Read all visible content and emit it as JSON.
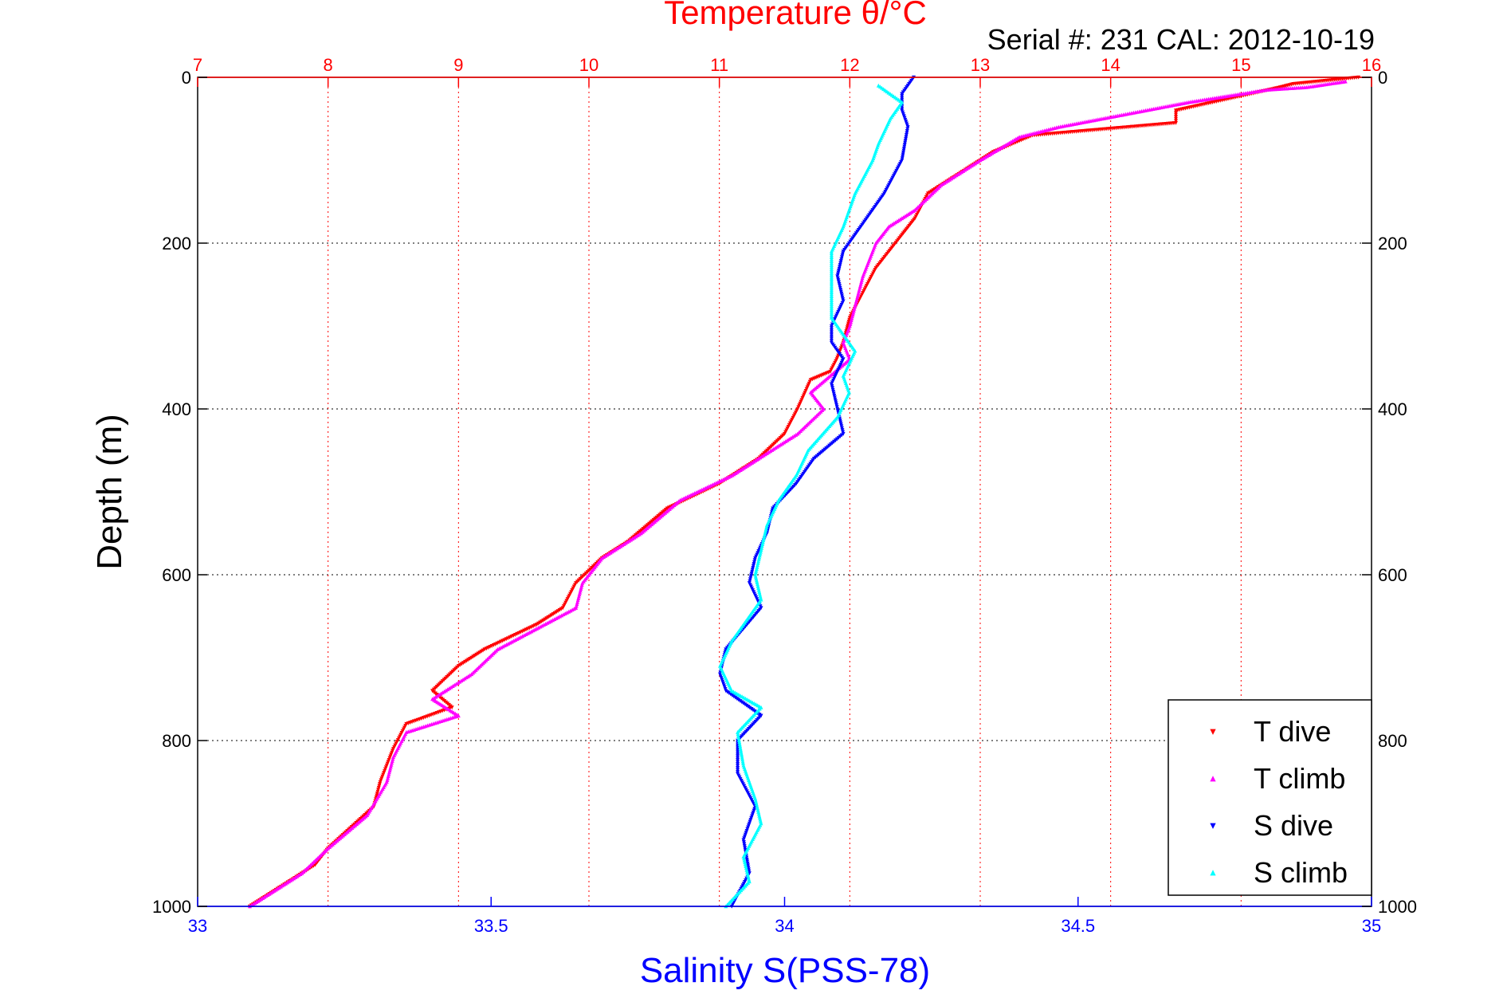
{
  "chart_data": {
    "type": "scatter",
    "title": "Temperature θ/°C",
    "subtitle": "Serial #: 231  CAL: 2012-10-19",
    "ylabel": "Depth (m)",
    "xlabel": "Salinity S(PSS-78)",
    "ylim": [
      0,
      1000
    ],
    "y_reversed": true,
    "y_ticks": [
      0,
      200,
      400,
      600,
      800,
      1000
    ],
    "temp_axis": {
      "position": "top",
      "lim": [
        7,
        16
      ],
      "ticks": [
        7,
        8,
        9,
        10,
        11,
        12,
        13,
        14,
        15,
        16
      ],
      "color": "#ff0000"
    },
    "sal_axis": {
      "position": "bottom",
      "lim": [
        33,
        35
      ],
      "ticks": [
        33,
        33.5,
        34,
        34.5,
        35
      ],
      "color": "#0000ff"
    },
    "grid": true,
    "legend_position": "bottom-right",
    "series": [
      {
        "name": "T dive",
        "axis": "temp",
        "color": "#ff0000",
        "marker": "triangle-down",
        "points": [
          [
            15.9,
            0
          ],
          [
            15.4,
            8
          ],
          [
            15.3,
            12
          ],
          [
            14.5,
            40
          ],
          [
            14.5,
            55
          ],
          [
            13.4,
            70
          ],
          [
            13.1,
            90
          ],
          [
            12.9,
            110
          ],
          [
            12.6,
            140
          ],
          [
            12.5,
            170
          ],
          [
            12.4,
            190
          ],
          [
            12.2,
            230
          ],
          [
            12.1,
            260
          ],
          [
            12.0,
            290
          ],
          [
            11.95,
            320
          ],
          [
            11.9,
            340
          ],
          [
            11.85,
            355
          ],
          [
            11.7,
            365
          ],
          [
            11.6,
            400
          ],
          [
            11.5,
            430
          ],
          [
            11.3,
            460
          ],
          [
            11.0,
            490
          ],
          [
            10.6,
            520
          ],
          [
            10.3,
            560
          ],
          [
            10.1,
            580
          ],
          [
            9.9,
            610
          ],
          [
            9.8,
            640
          ],
          [
            9.6,
            660
          ],
          [
            9.2,
            690
          ],
          [
            9.0,
            710
          ],
          [
            8.8,
            740
          ],
          [
            8.95,
            760
          ],
          [
            8.6,
            780
          ],
          [
            8.5,
            810
          ],
          [
            8.4,
            850
          ],
          [
            8.35,
            880
          ],
          [
            8.0,
            930
          ],
          [
            7.9,
            950
          ],
          [
            7.6,
            980
          ],
          [
            7.4,
            1000
          ]
        ]
      },
      {
        "name": "T climb",
        "axis": "temp",
        "color": "#ff00ff",
        "marker": "triangle-up",
        "points": [
          [
            15.8,
            5
          ],
          [
            15.5,
            12
          ],
          [
            15.2,
            15
          ],
          [
            14.6,
            30
          ],
          [
            14.1,
            45
          ],
          [
            13.6,
            60
          ],
          [
            13.3,
            72
          ],
          [
            13.0,
            100
          ],
          [
            12.7,
            130
          ],
          [
            12.5,
            160
          ],
          [
            12.3,
            180
          ],
          [
            12.2,
            200
          ],
          [
            12.1,
            240
          ],
          [
            12.05,
            270
          ],
          [
            12.0,
            300
          ],
          [
            11.95,
            320
          ],
          [
            12.0,
            340
          ],
          [
            11.85,
            360
          ],
          [
            11.7,
            380
          ],
          [
            11.8,
            400
          ],
          [
            11.6,
            430
          ],
          [
            11.3,
            460
          ],
          [
            11.1,
            480
          ],
          [
            10.7,
            510
          ],
          [
            10.4,
            550
          ],
          [
            10.1,
            580
          ],
          [
            9.95,
            610
          ],
          [
            9.9,
            640
          ],
          [
            9.3,
            690
          ],
          [
            9.1,
            720
          ],
          [
            8.8,
            750
          ],
          [
            9.0,
            770
          ],
          [
            8.6,
            790
          ],
          [
            8.5,
            820
          ],
          [
            8.45,
            850
          ],
          [
            8.3,
            890
          ],
          [
            8.0,
            930
          ],
          [
            7.8,
            960
          ],
          [
            7.6,
            980
          ],
          [
            7.4,
            1000
          ]
        ]
      },
      {
        "name": "S dive",
        "axis": "sal",
        "color": "#0000ff",
        "marker": "triangle-down",
        "points": [
          [
            34.22,
            0
          ],
          [
            34.2,
            20
          ],
          [
            34.2,
            40
          ],
          [
            34.21,
            60
          ],
          [
            34.2,
            100
          ],
          [
            34.17,
            140
          ],
          [
            34.13,
            180
          ],
          [
            34.1,
            210
          ],
          [
            34.09,
            240
          ],
          [
            34.1,
            270
          ],
          [
            34.08,
            300
          ],
          [
            34.08,
            320
          ],
          [
            34.1,
            340
          ],
          [
            34.08,
            370
          ],
          [
            34.09,
            400
          ],
          [
            34.1,
            430
          ],
          [
            34.05,
            460
          ],
          [
            34.02,
            490
          ],
          [
            33.98,
            520
          ],
          [
            33.97,
            550
          ],
          [
            33.95,
            580
          ],
          [
            33.94,
            610
          ],
          [
            33.96,
            640
          ],
          [
            33.9,
            690
          ],
          [
            33.89,
            720
          ],
          [
            33.9,
            740
          ],
          [
            33.96,
            770
          ],
          [
            33.92,
            800
          ],
          [
            33.92,
            840
          ],
          [
            33.95,
            880
          ],
          [
            33.93,
            920
          ],
          [
            33.94,
            960
          ],
          [
            33.91,
            1000
          ]
        ]
      },
      {
        "name": "S climb",
        "axis": "sal",
        "color": "#00ffff",
        "marker": "triangle-up",
        "points": [
          [
            34.16,
            10
          ],
          [
            34.2,
            30
          ],
          [
            34.18,
            50
          ],
          [
            34.16,
            80
          ],
          [
            34.15,
            100
          ],
          [
            34.12,
            140
          ],
          [
            34.1,
            180
          ],
          [
            34.08,
            210
          ],
          [
            34.08,
            250
          ],
          [
            34.08,
            290
          ],
          [
            34.1,
            310
          ],
          [
            34.12,
            330
          ],
          [
            34.1,
            360
          ],
          [
            34.11,
            380
          ],
          [
            34.09,
            410
          ],
          [
            34.04,
            450
          ],
          [
            34.02,
            480
          ],
          [
            33.99,
            510
          ],
          [
            33.97,
            540
          ],
          [
            33.96,
            570
          ],
          [
            33.95,
            600
          ],
          [
            33.96,
            630
          ],
          [
            33.91,
            680
          ],
          [
            33.89,
            710
          ],
          [
            33.91,
            740
          ],
          [
            33.96,
            760
          ],
          [
            33.92,
            790
          ],
          [
            33.93,
            830
          ],
          [
            33.95,
            870
          ],
          [
            33.96,
            900
          ],
          [
            33.93,
            940
          ],
          [
            33.94,
            970
          ],
          [
            33.9,
            1000
          ]
        ]
      }
    ]
  }
}
